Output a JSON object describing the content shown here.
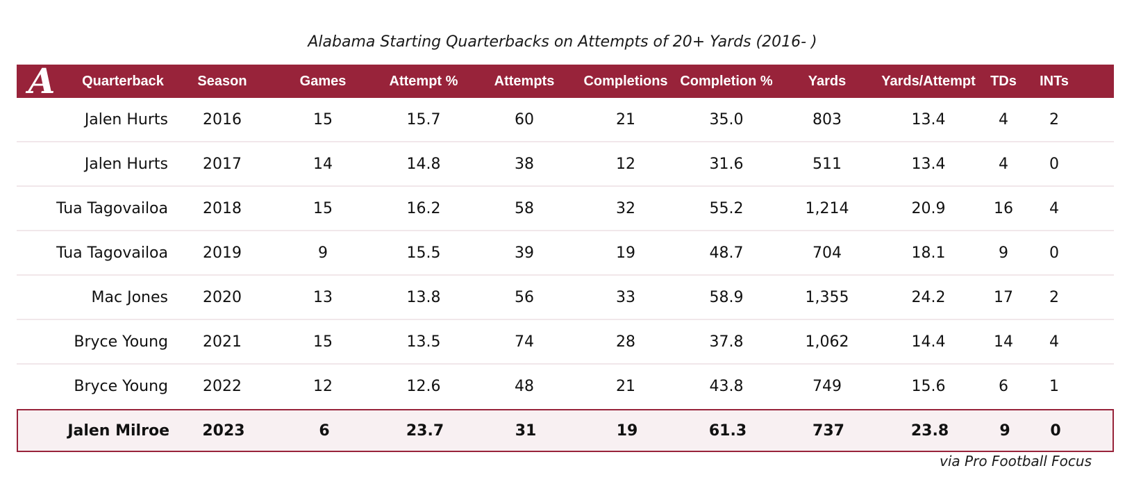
{
  "chart_data": {
    "type": "table",
    "title": "Alabama Starting Quarterbacks on Attempts of 20+ Yards (2016- )",
    "source": "via Pro Football Focus",
    "logo_text": "A",
    "columns": [
      "Quarterback",
      "Season",
      "Games",
      "Attempt %",
      "Attempts",
      "Completions",
      "Completion %",
      "Yards",
      "Yards/Attempt",
      "TDs",
      "INTs"
    ],
    "rows": [
      [
        "Jalen Hurts",
        "2016",
        "15",
        "15.7",
        "60",
        "21",
        "35.0",
        "803",
        "13.4",
        "4",
        "2"
      ],
      [
        "Jalen Hurts",
        "2017",
        "14",
        "14.8",
        "38",
        "12",
        "31.6",
        "511",
        "13.4",
        "4",
        "0"
      ],
      [
        "Tua Tagovailoa",
        "2018",
        "15",
        "16.2",
        "58",
        "32",
        "55.2",
        "1,214",
        "20.9",
        "16",
        "4"
      ],
      [
        "Tua Tagovailoa",
        "2019",
        "9",
        "15.5",
        "39",
        "19",
        "48.7",
        "704",
        "18.1",
        "9",
        "0"
      ],
      [
        "Mac Jones",
        "2020",
        "13",
        "13.8",
        "56",
        "33",
        "58.9",
        "1,355",
        "24.2",
        "17",
        "2"
      ],
      [
        "Bryce Young",
        "2021",
        "15",
        "13.5",
        "74",
        "28",
        "37.8",
        "1,062",
        "14.4",
        "14",
        "4"
      ],
      [
        "Bryce Young",
        "2022",
        "12",
        "12.6",
        "48",
        "21",
        "43.8",
        "749",
        "15.6",
        "6",
        "1"
      ],
      [
        "Jalen Milroe",
        "2023",
        "6",
        "23.7",
        "31",
        "19",
        "61.3",
        "737",
        "23.8",
        "9",
        "0"
      ]
    ],
    "highlight_row": 7,
    "colors": {
      "header": "#98233a",
      "highlight_bg": "#f8f0f2",
      "row_divider": "#f1e7ea"
    }
  }
}
